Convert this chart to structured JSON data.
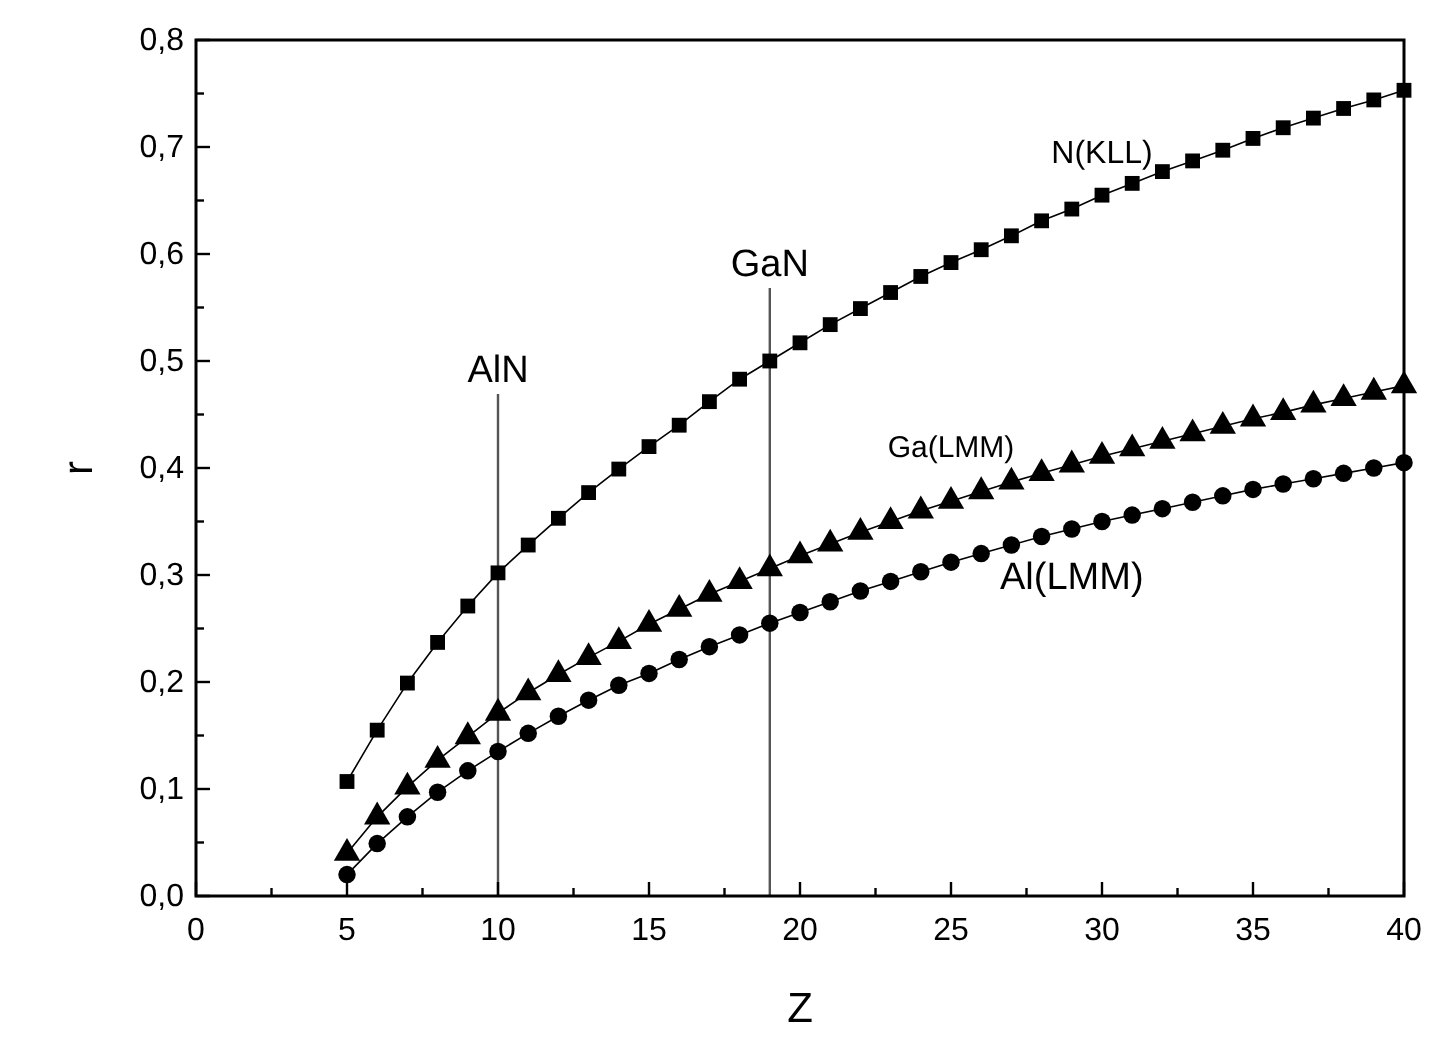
{
  "chart_data": {
    "type": "line",
    "xlabel": "Z",
    "ylabel": "r",
    "x": [
      5,
      6,
      7,
      8,
      9,
      10,
      11,
      12,
      13,
      14,
      15,
      16,
      17,
      18,
      19,
      20,
      21,
      22,
      23,
      24,
      25,
      26,
      27,
      28,
      29,
      30,
      31,
      32,
      33,
      34,
      35,
      36,
      37,
      38,
      39,
      40
    ],
    "series": [
      {
        "name": "N(KLL)",
        "color": "#000000",
        "marker": "square",
        "values": [
          0.107,
          0.155,
          0.199,
          0.237,
          0.271,
          0.302,
          0.328,
          0.353,
          0.377,
          0.399,
          0.42,
          0.44,
          0.462,
          0.483,
          0.5,
          0.517,
          0.534,
          0.549,
          0.564,
          0.579,
          0.592,
          0.604,
          0.617,
          0.631,
          0.642,
          0.655,
          0.666,
          0.677,
          0.687,
          0.697,
          0.708,
          0.718,
          0.727,
          0.736,
          0.744,
          0.753
        ]
      },
      {
        "name": "Ga(LMM)",
        "color": "#000000",
        "marker": "triangle",
        "values": [
          0.04,
          0.074,
          0.102,
          0.127,
          0.149,
          0.171,
          0.19,
          0.207,
          0.223,
          0.238,
          0.254,
          0.268,
          0.282,
          0.294,
          0.306,
          0.318,
          0.329,
          0.34,
          0.35,
          0.36,
          0.369,
          0.378,
          0.387,
          0.395,
          0.403,
          0.411,
          0.418,
          0.425,
          0.432,
          0.439,
          0.446,
          0.452,
          0.459,
          0.465,
          0.471,
          0.477
        ]
      },
      {
        "name": "Al(LMM)",
        "color": "#000000",
        "marker": "circle",
        "values": [
          0.02,
          0.049,
          0.074,
          0.097,
          0.117,
          0.135,
          0.152,
          0.168,
          0.183,
          0.197,
          0.208,
          0.221,
          0.233,
          0.244,
          0.255,
          0.265,
          0.275,
          0.285,
          0.294,
          0.303,
          0.312,
          0.32,
          0.328,
          0.336,
          0.343,
          0.35,
          0.356,
          0.362,
          0.368,
          0.374,
          0.38,
          0.385,
          0.39,
          0.395,
          0.4,
          0.405
        ]
      }
    ],
    "line_style": "solid",
    "grid": false,
    "xlim": [
      0,
      40
    ],
    "xticks": [
      0,
      {
        "value": 2.5,
        "label": null
      },
      5,
      {
        "value": 7.5,
        "label": null
      },
      10,
      {
        "value": 12.5,
        "label": null
      },
      15,
      {
        "value": 17.5,
        "label": null
      },
      20,
      {
        "value": 22.5,
        "label": null
      },
      25,
      {
        "value": 27.5,
        "label": null
      },
      30,
      {
        "value": 32.5,
        "label": null
      },
      35,
      {
        "value": 37.5,
        "label": null
      },
      40
    ],
    "ylim": [
      0,
      0.8
    ],
    "yticks": [
      {
        "value": 0,
        "label": "0,0"
      },
      {
        "value": 0.05,
        "label": null
      },
      {
        "value": 0.1,
        "label": "0,1"
      },
      {
        "value": 0.15,
        "label": null
      },
      {
        "value": 0.2,
        "label": "0,2"
      },
      {
        "value": 0.25,
        "label": null
      },
      {
        "value": 0.3,
        "label": "0,3"
      },
      {
        "value": 0.35,
        "label": null
      },
      {
        "value": 0.4,
        "label": "0,4"
      },
      {
        "value": 0.45,
        "label": null
      },
      {
        "value": 0.5,
        "label": "0,5"
      },
      {
        "value": 0.55,
        "label": null
      },
      {
        "value": 0.6,
        "label": "0,6"
      },
      {
        "value": 0.65,
        "label": null
      },
      {
        "value": 0.7,
        "label": "0,7"
      },
      {
        "value": 0.75,
        "label": null
      },
      {
        "value": 0.8,
        "label": "0,8"
      }
    ],
    "ref_lines": [
      {
        "axis": "x",
        "value": 10,
        "color": "#555555",
        "label": "AlN"
      },
      {
        "axis": "x",
        "value": 19,
        "color": "#555555",
        "label": "GaN"
      }
    ]
  }
}
